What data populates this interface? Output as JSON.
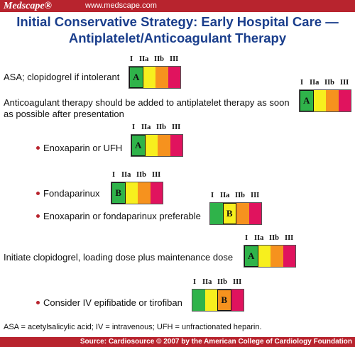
{
  "header": {
    "brand": "Medscape®",
    "url": "www.medscape.com"
  },
  "title": {
    "line1": "Initial Conservative Strategy: Early Hospital Care —",
    "line2": "Antiplatelet/Anticoagulant Therapy"
  },
  "class_labels": [
    "I",
    "IIa",
    "IIb",
    "III"
  ],
  "class_colors": [
    "#2fb34a",
    "#f7ef1e",
    "#f6921e",
    "#e0135e"
  ],
  "recommendations": [
    {
      "text": "ASA; clopidogrel if intolerant",
      "level": "A",
      "class_index": 0
    },
    {
      "text": "Anticoagulant therapy should be added to antiplatelet therapy as soon",
      "text2": "as possible after presentation",
      "level": "A",
      "class_index": 0
    },
    {
      "text": "Enoxaparin or UFH",
      "level": "A",
      "class_index": 0
    },
    {
      "text": "Fondaparinux",
      "level": "B",
      "class_index": 0
    },
    {
      "text": "Enoxaparin or fondaparinux preferable",
      "level": "B",
      "class_index": 1
    },
    {
      "text": "Initiate clopidogrel, loading dose plus maintenance dose",
      "level": "A",
      "class_index": 0
    },
    {
      "text": "Consider IV epifibatide or tirofiban",
      "level": "B",
      "class_index": 2
    }
  ],
  "footnote": "ASA = acetylsalicylic acid; IV = intravenous; UFH = unfractionated heparin.",
  "source": "Source: Cardiosource © 2007 by the American College of Cardiology Foundation"
}
